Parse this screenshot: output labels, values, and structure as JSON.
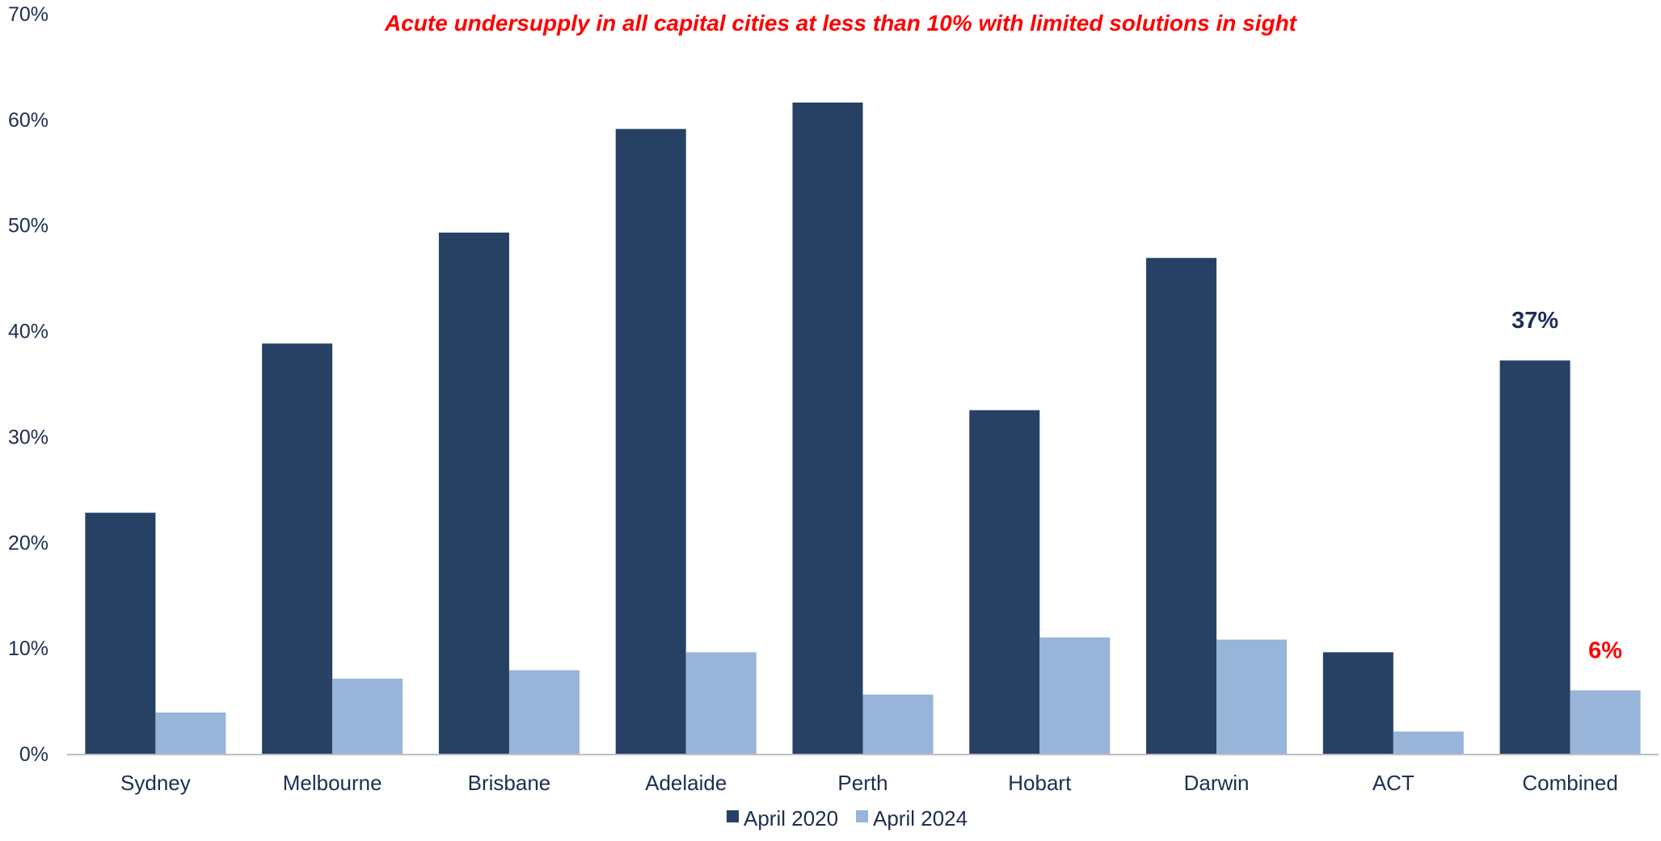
{
  "chart_data": {
    "type": "bar",
    "title": "Acute undersupply in all capital cities at less than 10% with limited solutions in sight",
    "xlabel": "",
    "ylabel": "",
    "ylim": [
      0,
      70
    ],
    "yticks": [
      0,
      10,
      20,
      30,
      40,
      50,
      60,
      70
    ],
    "ytick_format": "{v}%",
    "categories": [
      "Sydney",
      "Melbourne",
      "Brisbane",
      "Adelaide",
      "Perth",
      "Hobart",
      "Darwin",
      "ACT",
      "Combined"
    ],
    "series": [
      {
        "name": "April 2020",
        "color": "#264163",
        "values": [
          22.8,
          38.8,
          49.3,
          59.1,
          61.6,
          32.5,
          46.9,
          9.6,
          37.2
        ]
      },
      {
        "name": "April 2024",
        "color": "#98b4d9",
        "values": [
          3.9,
          7.1,
          7.9,
          9.6,
          5.6,
          11.0,
          10.8,
          2.1,
          6.0
        ]
      }
    ],
    "data_labels": [
      {
        "series": 0,
        "category": "Combined",
        "text": "37%",
        "color": "#1f2d5a"
      },
      {
        "series": 1,
        "category": "Combined",
        "text": "6%",
        "color": "#ff0000"
      }
    ],
    "grid": false,
    "legend": "bottom-center",
    "title_color": "#ff0000",
    "axis_text_color": "#1f2d4f",
    "axis_line_color": "#bfbfbf"
  }
}
